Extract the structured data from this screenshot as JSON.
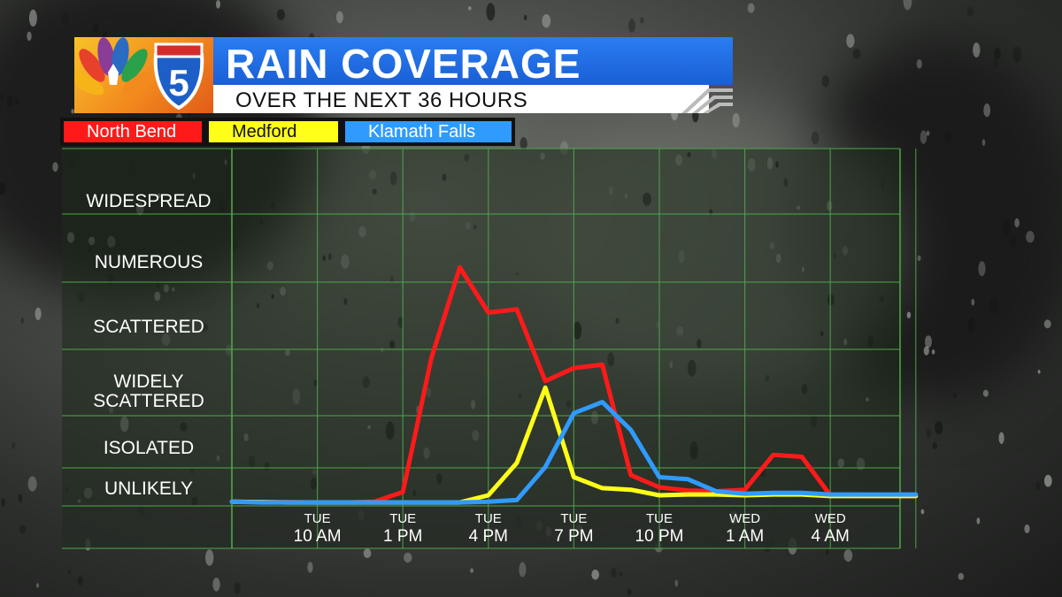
{
  "header": {
    "title": "RAIN COVERAGE",
    "subtitle": "OVER THE NEXT 36 HOURS",
    "logo_text": "5"
  },
  "colors": {
    "north_bend": "#ff1a1a",
    "medford": "#ffff1a",
    "klamath_falls": "#2f9bff",
    "title_bar": "#1f6ce0",
    "grid": "#4fa84a"
  },
  "chart_data": {
    "type": "line",
    "title": "RAIN COVERAGE",
    "subtitle": "OVER THE NEXT 36 HOURS",
    "y_categories": [
      "UNLIKELY",
      "ISOLATED",
      "WIDELY SCATTERED",
      "SCATTERED",
      "NUMEROUS",
      "WIDESPREAD"
    ],
    "y_range": [
      0,
      6.5
    ],
    "x_range_hours": [
      0,
      36
    ],
    "x_ticks": [
      {
        "day": "TUE",
        "time": "10 AM",
        "hour": 2
      },
      {
        "day": "TUE",
        "time": "1 PM",
        "hour": 5
      },
      {
        "day": "TUE",
        "time": "4 PM",
        "hour": 8
      },
      {
        "day": "TUE",
        "time": "7 PM",
        "hour": 11
      },
      {
        "day": "TUE",
        "time": "10 PM",
        "hour": 14
      },
      {
        "day": "WED",
        "time": "1 AM",
        "hour": 17
      },
      {
        "day": "WED",
        "time": "4 AM",
        "hour": 20
      }
    ],
    "legend_placement": "top-left",
    "grid": true,
    "series": [
      {
        "name": "North Bend",
        "color": "#ff1a1a",
        "x": [
          -1,
          0,
          1,
          2,
          3,
          4,
          5,
          6,
          7,
          8,
          9,
          10,
          11,
          12,
          13,
          14,
          15,
          16,
          17,
          18,
          19,
          20,
          21,
          22,
          23
        ],
        "y": [
          0.1,
          0.08,
          0.08,
          0.05,
          0.05,
          0.1,
          0.7,
          3.5,
          4.9,
          4.2,
          4.25,
          3.15,
          3.35,
          3.4,
          1.3,
          1.0,
          0.8,
          0.75,
          0.85,
          1.8,
          1.75,
          0.5,
          0.45,
          0.45,
          0.45
        ]
      },
      {
        "name": "Medford",
        "color": "#ffff1a",
        "x": [
          -1,
          0,
          1,
          2,
          3,
          4,
          5,
          6,
          7,
          8,
          9,
          10,
          11,
          12,
          13,
          14,
          15,
          16,
          17,
          18,
          19,
          20,
          21,
          22,
          23
        ],
        "y": [
          0.1,
          0.08,
          0.05,
          0.05,
          0.05,
          0.05,
          0.05,
          0.05,
          0.05,
          0.5,
          1.6,
          3.05,
          1.25,
          0.95,
          0.85,
          0.5,
          0.55,
          0.55,
          0.5,
          0.55,
          0.55,
          0.45,
          0.45,
          0.45,
          0.45
        ]
      },
      {
        "name": "Klamath Falls",
        "color": "#2f9bff",
        "x": [
          -1,
          0,
          1,
          2,
          3,
          4,
          5,
          6,
          7,
          8,
          9,
          10,
          11,
          12,
          13,
          14,
          15,
          16,
          17,
          18,
          19,
          20,
          21,
          22,
          23
        ],
        "y": [
          0.1,
          0.05,
          0.05,
          0.05,
          0.05,
          0.05,
          0.05,
          0.05,
          0.05,
          0.1,
          0.2,
          1.5,
          2.6,
          2.8,
          2.3,
          1.25,
          1.2,
          0.75,
          0.6,
          0.65,
          0.65,
          0.55,
          0.55,
          0.55,
          0.55
        ]
      }
    ]
  }
}
